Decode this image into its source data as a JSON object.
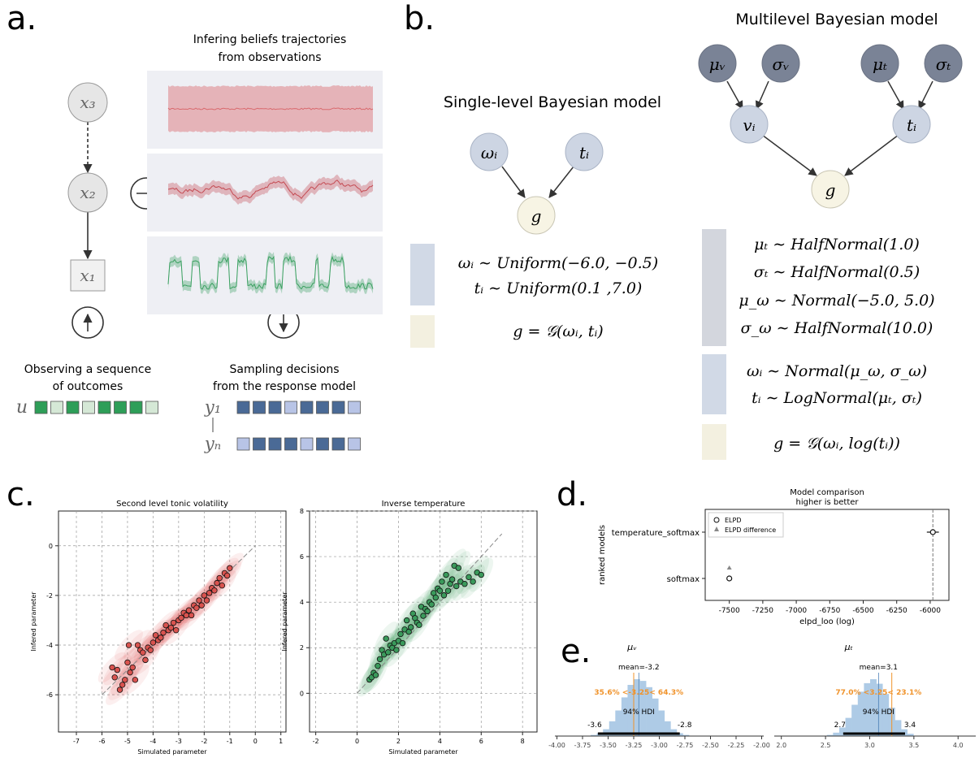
{
  "panel_a": {
    "letter": "a.",
    "beliefs_title": [
      "Infering beliefs trajectories",
      "from observations"
    ],
    "nodes": {
      "x3": "x₃",
      "x2": "x₂",
      "x1": "x₁"
    },
    "observing_label": [
      "Observing a sequence",
      "of outcomes"
    ],
    "sampling_label": [
      "Sampling decisions",
      "from the response model"
    ],
    "u_label": "u",
    "y1_label": "y₁",
    "yn_label": "yₙ",
    "u_squares": [
      "#2e9e58",
      "#d5e8d6",
      "#2e9e58",
      "#d5e8d6",
      "#2e9e58",
      "#2e9e58",
      "#2e9e58",
      "#d5e8d6"
    ],
    "y1_squares": [
      "#4a6a96",
      "#4a6a96",
      "#4a6a96",
      "#b8c4e6",
      "#4a6a96",
      "#4a6a96",
      "#4a6a96",
      "#b8c4e6"
    ],
    "yn_squares": [
      "#b8c4e6",
      "#4a6a96",
      "#4a6a96",
      "#4a6a96",
      "#b8c4e6",
      "#4a6a96",
      "#4a6a96",
      "#b8c4e6"
    ]
  },
  "panel_b": {
    "letter": "b.",
    "single_title": "Single-level Bayesian model",
    "multi_title": "Multilevel Bayesian model",
    "single_nodes": {
      "omega": "ωᵢ",
      "t": "tᵢ",
      "g": "g"
    },
    "multi_nodes": {
      "mu_v": "μᵥ",
      "sigma_v": "σᵥ",
      "mu_t": "μₜ",
      "sigma_t": "σₜ",
      "v": "vᵢ",
      "t": "tᵢ",
      "g": "g"
    },
    "single_eqs": [
      "ωᵢ ∼ Uniform(−6.0, −0.5)",
      "tᵢ ∼ Uniform(0.1 ,7.0)",
      "g = 𝒢(ωᵢ, tᵢ)"
    ],
    "multi_eqs": [
      "μₜ ∼ HalfNormal(1.0)",
      "σₜ ∼ HalfNormal(0.5)",
      "μ_ω ∼ Normal(−5.0, 5.0)",
      "σ_ω ∼ HalfNormal(10.0)",
      "ωᵢ ∼ Normal(μ_ω, σ_ω)",
      "tᵢ ∼ LogNormal(μₜ, σₜ)",
      "g = 𝒢(ωᵢ, log(tᵢ))"
    ]
  },
  "panel_c": {
    "letter": "c."
  },
  "panel_d": {
    "letter": "d."
  },
  "panel_e": {
    "letter": "e."
  },
  "chart_data": [
    {
      "id": "volatility",
      "type": "scatter",
      "title": "Second level tonic volatility",
      "xlabel": "Simulated parameter",
      "ylabel": "Infered parameter",
      "xlim": [
        -7.7,
        1.2
      ],
      "ylim": [
        -7.5,
        1.4
      ],
      "xticks": [
        "-7",
        "-6",
        "-5",
        "-4",
        "-3",
        "-2",
        "-1",
        "0",
        "1"
      ],
      "yticks": [
        "-6",
        "-4",
        "-2",
        "0"
      ],
      "grid": true,
      "color": "#d9534f",
      "x": [
        -5.6,
        -5.5,
        -5.4,
        -5.3,
        -5.2,
        -5.1,
        -5.0,
        -4.95,
        -4.9,
        -4.8,
        -4.7,
        -4.6,
        -4.5,
        -4.4,
        -4.3,
        -4.2,
        -4.1,
        -4.0,
        -3.9,
        -3.8,
        -3.7,
        -3.6,
        -3.5,
        -3.4,
        -3.3,
        -3.2,
        -3.1,
        -3.0,
        -2.9,
        -2.8,
        -2.7,
        -2.6,
        -2.5,
        -2.4,
        -2.3,
        -2.2,
        -2.1,
        -2.0,
        -1.9,
        -1.8,
        -1.7,
        -1.6,
        -1.5,
        -1.4,
        -1.3,
        -1.2,
        -1.1,
        -1.0
      ],
      "y": [
        -4.9,
        -5.3,
        -5.0,
        -5.8,
        -5.6,
        -5.4,
        -4.7,
        -4.0,
        -5.1,
        -4.9,
        -5.4,
        -4.0,
        -4.2,
        -4.3,
        -4.6,
        -4.1,
        -4.2,
        -3.9,
        -3.6,
        -3.8,
        -3.7,
        -3.5,
        -3.2,
        -3.4,
        -3.3,
        -3.1,
        -3.4,
        -3.0,
        -2.9,
        -2.7,
        -2.8,
        -2.6,
        -2.8,
        -2.4,
        -2.5,
        -2.2,
        -2.4,
        -2.0,
        -2.2,
        -1.9,
        -1.7,
        -1.8,
        -1.5,
        -1.3,
        -1.6,
        -1.1,
        -1.2,
        -0.9
      ]
    },
    {
      "id": "temperature",
      "type": "scatter",
      "title": "Inverse temperature",
      "xlabel": "Simulated parameter",
      "ylabel": "Infered parameter",
      "xlim": [
        -2.3,
        8.7
      ],
      "ylim": [
        -1.7,
        8.0
      ],
      "xticks": [
        "-2",
        "0",
        "2",
        "4",
        "6",
        "8"
      ],
      "yticks": [
        "0",
        "2",
        "4",
        "6",
        "8"
      ],
      "grid": true,
      "color": "#3a9a5b",
      "x": [
        0.6,
        0.7,
        0.8,
        0.9,
        1.0,
        1.1,
        1.2,
        1.3,
        1.4,
        1.5,
        1.6,
        1.7,
        1.8,
        1.9,
        2.0,
        2.1,
        2.2,
        2.3,
        2.4,
        2.5,
        2.6,
        2.7,
        2.8,
        2.9,
        3.0,
        3.1,
        3.2,
        3.3,
        3.4,
        3.5,
        3.6,
        3.7,
        3.8,
        3.9,
        4.0,
        4.1,
        4.2,
        4.3,
        4.4,
        4.5,
        4.6,
        4.7,
        4.8,
        4.9,
        5.0,
        5.2,
        5.4,
        5.6,
        5.8,
        6.0
      ],
      "y": [
        0.6,
        0.7,
        0.9,
        0.8,
        1.2,
        1.5,
        1.9,
        1.7,
        2.4,
        1.8,
        2.1,
        2.0,
        2.2,
        1.9,
        2.3,
        2.6,
        2.2,
        2.8,
        3.2,
        2.7,
        2.9,
        3.5,
        3.3,
        3.1,
        3.0,
        3.8,
        3.4,
        3.7,
        3.6,
        4.0,
        3.9,
        4.4,
        4.2,
        4.6,
        4.5,
        4.9,
        4.3,
        5.2,
        4.5,
        4.8,
        5.0,
        5.6,
        4.7,
        5.5,
        4.9,
        4.8,
        5.1,
        4.9,
        5.3,
        5.2
      ]
    },
    {
      "id": "model_comparison",
      "type": "scatter",
      "title": [
        "Model comparison",
        "higher is better"
      ],
      "xlabel": "elpd_loo (log)",
      "ylabel": "ranked models",
      "xlim": [
        -7680,
        -5860
      ],
      "xticks": [
        "-7500",
        "-7250",
        "-7000",
        "-6750",
        "-6500",
        "-6250",
        "-6000"
      ],
      "categories": [
        "temperature_softmax",
        "softmax"
      ],
      "elpd": [
        -5980,
        -7500
      ],
      "elpd_se": [
        45,
        10
      ],
      "elpd_difference": [
        null,
        -7500
      ],
      "legend": [
        "ELPD",
        "ELPD difference"
      ],
      "legend_position": "top-left"
    },
    {
      "id": "mu_v",
      "type": "bar",
      "title": "μᵥ",
      "xlim": [
        -4.02,
        -1.98
      ],
      "xticks": [
        "-4.00",
        "-3.75",
        "-3.50",
        "-3.25",
        "-3.00",
        "-2.75",
        "-2.50",
        "-2.25",
        "-2.00"
      ],
      "bins_x": [
        -3.64,
        -3.58,
        -3.52,
        -3.46,
        -3.4,
        -3.34,
        -3.28,
        -3.22,
        -3.16,
        -3.1,
        -3.04,
        -2.98,
        -2.92,
        -2.86,
        -2.8,
        -2.74
      ],
      "bins_h": [
        0.02,
        0.05,
        0.12,
        0.26,
        0.45,
        0.68,
        0.9,
        1.0,
        0.97,
        0.86,
        0.66,
        0.45,
        0.26,
        0.12,
        0.05,
        0.02
      ],
      "mean_label": "mean=-3.2",
      "mean": -3.2,
      "ref_label": "35.6% <-3.25< 64.3%",
      "ref_value": -3.25,
      "hdi_label": "94% HDI",
      "hdi": [
        -3.6,
        -2.8
      ],
      "hdi_low_label": "-3.6",
      "hdi_high_label": "-2.8"
    },
    {
      "id": "mu_t",
      "type": "bar",
      "title": "μₜ",
      "xlim": [
        1.92,
        4.2
      ],
      "xticks": [
        "2.0",
        "2.5",
        "3.0",
        "3.5",
        "4.0"
      ],
      "bins_x": [
        2.55,
        2.62,
        2.69,
        2.76,
        2.83,
        2.9,
        2.97,
        3.04,
        3.11,
        3.18,
        3.25,
        3.32,
        3.39,
        3.46
      ],
      "bins_h": [
        0.02,
        0.06,
        0.15,
        0.32,
        0.55,
        0.78,
        0.93,
        1.0,
        0.92,
        0.74,
        0.5,
        0.28,
        0.12,
        0.04
      ],
      "mean_label": "mean=3.1",
      "mean": 3.1,
      "ref_label": "77.0% <3.25< 23.1%",
      "ref_value": 3.25,
      "hdi_label": "94% HDI",
      "hdi": [
        2.7,
        3.4
      ],
      "hdi_low_label": "2.7",
      "hdi_high_label": "3.4"
    }
  ]
}
